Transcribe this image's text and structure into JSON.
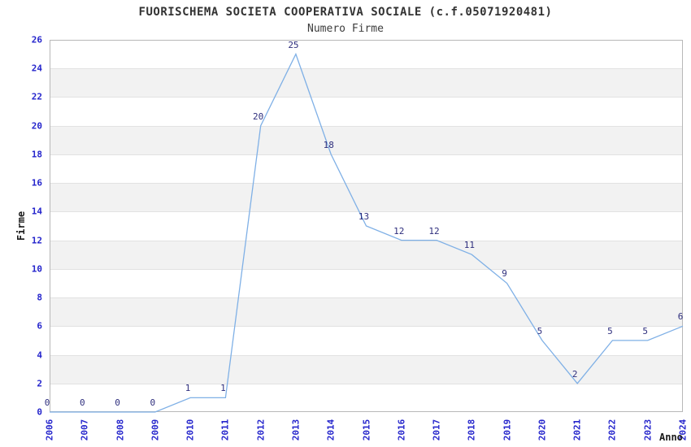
{
  "chart_data": {
    "type": "line",
    "title": "FUORISCHEMA SOCIETA COOPERATIVA SOCIALE (c.f.05071920481)",
    "subtitle": "Numero Firme",
    "xlabel": "Anno",
    "ylabel": "Firme",
    "x": [
      "2006",
      "2007",
      "2008",
      "2009",
      "2010",
      "2011",
      "2012",
      "2013",
      "2014",
      "2015",
      "2016",
      "2017",
      "2018",
      "2019",
      "2020",
      "2021",
      "2022",
      "2023",
      "2024"
    ],
    "values": [
      0,
      0,
      0,
      0,
      1,
      1,
      20,
      25,
      18,
      13,
      12,
      12,
      11,
      9,
      5,
      2,
      5,
      5,
      6
    ],
    "point_labels": [
      "0",
      "0",
      "0",
      "0",
      "1",
      "1",
      "20",
      "25",
      "18",
      "13",
      "12",
      "12",
      "11",
      "9",
      "5",
      "2",
      "5",
      "5",
      "6"
    ],
    "ylim": [
      0,
      26
    ],
    "ytick_step": 2,
    "grid": "horizontal-alternating-bands",
    "legend": "none",
    "colors": {
      "line": "#7fb0e6",
      "tick_label": "#2525cc",
      "point_label": "#2e2e7d",
      "band_fill": "#f2f2f2",
      "grid_line": "#e2e2e2",
      "plot_border": "#b8b8b8",
      "title_text": "#333333",
      "background": "#ffffff"
    }
  }
}
